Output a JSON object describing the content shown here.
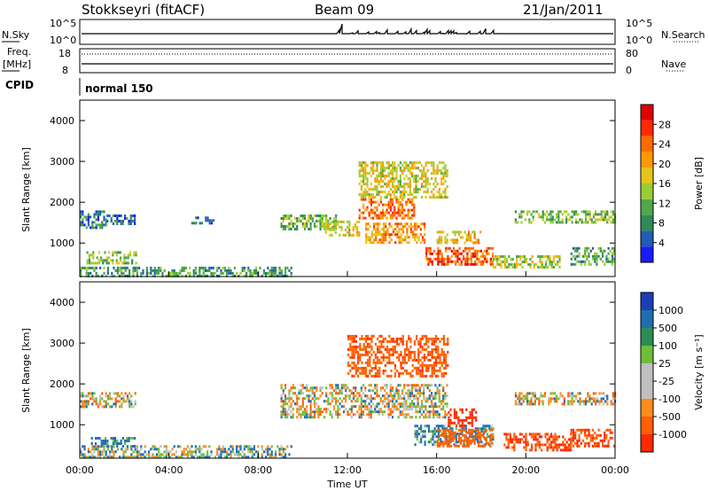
{
  "header": {
    "station": "Stokkseyri (fitACF)",
    "beam": "Beam 09",
    "date": "21/Jan/2011"
  },
  "status_panels": {
    "nsky_label": "N.Sky",
    "nsky_ticks": [
      "10^5",
      "10^0"
    ],
    "nsearch_label": "N.Search",
    "nsearch_ticks": [
      "10^5",
      "10^0"
    ],
    "freq_label": "Freq.",
    "freq_unit": "[MHz]",
    "freq_ticks": [
      "18",
      "8"
    ],
    "nave_label": "Nave",
    "nave_ticks": [
      "80",
      "0"
    ],
    "cpid_label": "CPID",
    "cpid_value": "normal 150"
  },
  "colors": {
    "power_scale": [
      "#1a1aff",
      "#1f5db5",
      "#2e8b57",
      "#4fa84a",
      "#9acd32",
      "#e6c51a",
      "#ff9900",
      "#ff6a00",
      "#ff2a00",
      "#e00000"
    ],
    "velocity_scale": [
      "#1a3fb5",
      "#1f6fb0",
      "#2e8b57",
      "#6dbf3a",
      "#c0c0c0",
      "#c0c0c0",
      "#ff8c1a",
      "#ff6000",
      "#ff2a00"
    ],
    "frame": "#000000"
  },
  "chart_data": [
    {
      "type": "heatmap",
      "name": "power",
      "xlabel": "Time UT",
      "ylabel": "Slant Range [km]",
      "x_ticks": [
        "00:00",
        "04:00",
        "08:00",
        "12:00",
        "16:00",
        "20:00",
        "00:00"
      ],
      "y_ticks": [
        "1000",
        "2000",
        "3000",
        "4000"
      ],
      "xlim_hours": [
        0,
        24
      ],
      "ylim_km": [
        180,
        4500
      ],
      "colorbar_label": "Power [dB]",
      "colorbar_ticks": [
        "28",
        "24",
        "20",
        "16",
        "12",
        "8",
        "4"
      ],
      "colorbar_range": [
        0,
        30
      ],
      "regions": [
        {
          "t0": 0.0,
          "t1": 1.2,
          "r0": 1350,
          "r1": 1800,
          "value": 6
        },
        {
          "t0": 1.2,
          "t1": 2.5,
          "r0": 1450,
          "r1": 1700,
          "value": 5
        },
        {
          "t0": 5.0,
          "t1": 6.0,
          "r0": 1500,
          "r1": 1650,
          "value": 4
        },
        {
          "t0": 0.0,
          "t1": 9.5,
          "r0": 200,
          "r1": 420,
          "value": 9
        },
        {
          "t0": 0.3,
          "t1": 2.5,
          "r0": 500,
          "r1": 800,
          "value": 12
        },
        {
          "t0": 9.0,
          "t1": 11.5,
          "r0": 1350,
          "r1": 1700,
          "value": 12
        },
        {
          "t0": 11.0,
          "t1": 12.5,
          "r0": 1200,
          "r1": 1550,
          "value": 16
        },
        {
          "t0": 12.5,
          "t1": 15.0,
          "r0": 1600,
          "r1": 2100,
          "value": 22
        },
        {
          "t0": 12.8,
          "t1": 15.5,
          "r0": 1000,
          "r1": 1500,
          "value": 20
        },
        {
          "t0": 12.5,
          "t1": 16.5,
          "r0": 2100,
          "r1": 3000,
          "value": 16
        },
        {
          "t0": 15.5,
          "t1": 18.5,
          "r0": 500,
          "r1": 900,
          "value": 24
        },
        {
          "t0": 16.0,
          "t1": 18.0,
          "r0": 1000,
          "r1": 1300,
          "value": 18
        },
        {
          "t0": 18.5,
          "t1": 21.5,
          "r0": 400,
          "r1": 700,
          "value": 14
        },
        {
          "t0": 19.5,
          "t1": 24.0,
          "r0": 1500,
          "r1": 1800,
          "value": 12
        },
        {
          "t0": 22.0,
          "t1": 24.0,
          "r0": 500,
          "r1": 900,
          "value": 10
        }
      ]
    },
    {
      "type": "heatmap",
      "name": "velocity",
      "xlabel": "Time UT",
      "ylabel": "Slant Range [km]",
      "x_ticks": [
        "00:00",
        "04:00",
        "08:00",
        "12:00",
        "16:00",
        "20:00",
        "00:00"
      ],
      "y_ticks": [
        "1000",
        "2000",
        "3000",
        "4000"
      ],
      "xlim_hours": [
        0,
        24
      ],
      "ylim_km": [
        180,
        4500
      ],
      "colorbar_label": "Velocity [m s⁻¹]",
      "colorbar_ticks": [
        "1000",
        "500",
        "100",
        "25",
        "-25",
        "-100",
        "-500",
        "-1000"
      ],
      "colorbar_range": [
        -1200,
        1200
      ],
      "regions": [
        {
          "t0": 0.0,
          "t1": 2.5,
          "r0": 1450,
          "r1": 1800,
          "value": 0
        },
        {
          "t0": 0.0,
          "t1": 9.5,
          "r0": 200,
          "r1": 500,
          "value": 60
        },
        {
          "t0": 0.5,
          "t1": 2.5,
          "r0": 500,
          "r1": 700,
          "value": 200
        },
        {
          "t0": 9.0,
          "t1": 16.5,
          "r0": 1200,
          "r1": 2000,
          "value": 0
        },
        {
          "t0": 12.0,
          "t1": 16.5,
          "r0": 2200,
          "r1": 3200,
          "value": -400
        },
        {
          "t0": 15.0,
          "t1": 18.5,
          "r0": 500,
          "r1": 1000,
          "value": 150
        },
        {
          "t0": 16.0,
          "t1": 18.5,
          "r0": 500,
          "r1": 900,
          "value": -300
        },
        {
          "t0": 16.5,
          "t1": 17.8,
          "r0": 1000,
          "r1": 1400,
          "value": -700
        },
        {
          "t0": 19.0,
          "t1": 22.0,
          "r0": 400,
          "r1": 800,
          "value": -500
        },
        {
          "t0": 19.5,
          "t1": 24.0,
          "r0": 1500,
          "r1": 1800,
          "value": 0
        },
        {
          "t0": 22.0,
          "t1": 24.0,
          "r0": 500,
          "r1": 900,
          "value": -500
        }
      ]
    }
  ]
}
